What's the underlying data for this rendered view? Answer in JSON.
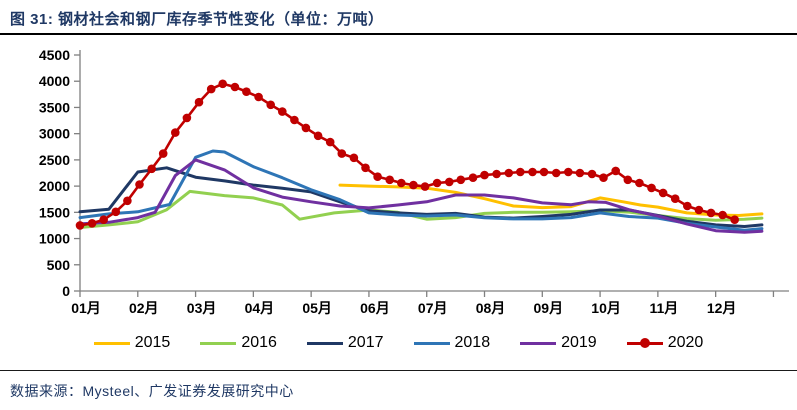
{
  "title": "图 31:  钢材社会和钢厂库存季节性变化（单位：万吨）",
  "source": "数据来源：Mysteel、广发证券发展研究中心",
  "chart_data": {
    "type": "line",
    "title": "钢材社会和钢厂库存季节性变化",
    "unit": "万吨",
    "x_axis": {
      "labels": [
        "01月",
        "02月",
        "03月",
        "04月",
        "05月",
        "06月",
        "07月",
        "08月",
        "09月",
        "10月",
        "11月",
        "12月"
      ],
      "range": [
        0,
        12.2
      ],
      "note": "x is in month units, 0 = Jan 1, 11.8 ~= end of Dec"
    },
    "y_axis": {
      "ticks": [
        0,
        500,
        1000,
        1500,
        2000,
        2500,
        3000,
        3500,
        4000,
        4500
      ],
      "range": [
        0,
        4500
      ]
    },
    "grid": false,
    "legend_position": "bottom",
    "axis_color": "#808080",
    "series": [
      {
        "name": "2015",
        "color": "#FFC000",
        "marker": "none",
        "x": [
          4.5,
          5.0,
          5.5,
          6.0,
          6.5,
          7.0,
          7.5,
          8.0,
          8.5,
          9.0,
          9.4,
          9.7,
          10.0,
          10.5,
          11.0,
          11.4,
          11.8
        ],
        "y": [
          2020,
          2000,
          1985,
          1960,
          1880,
          1760,
          1620,
          1590,
          1610,
          1775,
          1700,
          1640,
          1600,
          1490,
          1450,
          1440,
          1470
        ]
      },
      {
        "name": "2016",
        "color": "#92D050",
        "marker": "none",
        "x": [
          0,
          0.5,
          1.0,
          1.5,
          1.9,
          2.5,
          3.0,
          3.5,
          3.8,
          4.4,
          5.0,
          5.5,
          6.0,
          6.5,
          7.0,
          7.5,
          8.0,
          8.5,
          9.0,
          9.5,
          10.0,
          10.5,
          11.0,
          11.5,
          11.8
        ],
        "y": [
          1210,
          1260,
          1320,
          1550,
          1900,
          1820,
          1775,
          1640,
          1370,
          1490,
          1545,
          1500,
          1370,
          1400,
          1480,
          1500,
          1500,
          1510,
          1530,
          1505,
          1440,
          1380,
          1350,
          1370,
          1390
        ]
      },
      {
        "name": "2017",
        "color": "#1F3864",
        "marker": "none",
        "x": [
          0,
          0.5,
          1.0,
          1.5,
          2.0,
          2.5,
          3.0,
          3.5,
          4.0,
          4.5,
          5.0,
          5.5,
          6.0,
          6.5,
          7.0,
          7.5,
          8.0,
          8.5,
          9.0,
          9.5,
          10.0,
          10.5,
          11.0,
          11.5,
          11.8
        ],
        "y": [
          1510,
          1560,
          2270,
          2350,
          2170,
          2100,
          2020,
          1960,
          1890,
          1700,
          1530,
          1490,
          1460,
          1480,
          1410,
          1390,
          1420,
          1460,
          1545,
          1545,
          1440,
          1330,
          1260,
          1230,
          1260
        ]
      },
      {
        "name": "2018",
        "color": "#2E75B6",
        "marker": "none",
        "x": [
          0,
          0.5,
          1.0,
          1.55,
          2.0,
          2.3,
          2.5,
          3.0,
          3.5,
          4.0,
          4.5,
          5.0,
          5.5,
          6.0,
          6.5,
          7.0,
          7.5,
          8.0,
          8.5,
          9.0,
          9.5,
          10.0,
          10.5,
          11.0,
          11.5,
          11.8
        ],
        "y": [
          1400,
          1470,
          1510,
          1650,
          2550,
          2670,
          2650,
          2370,
          2160,
          1930,
          1740,
          1490,
          1450,
          1430,
          1450,
          1395,
          1375,
          1375,
          1400,
          1490,
          1420,
          1390,
          1290,
          1220,
          1160,
          1190
        ]
      },
      {
        "name": "2019",
        "color": "#7030A0",
        "marker": "none",
        "x": [
          0,
          0.5,
          1.0,
          1.3,
          1.65,
          2.0,
          2.5,
          3.0,
          3.5,
          4.0,
          4.5,
          5.0,
          5.5,
          6.0,
          6.5,
          7.0,
          7.5,
          8.0,
          8.5,
          8.8,
          9.1,
          9.5,
          10.0,
          10.5,
          11.0,
          11.5,
          11.8
        ],
        "y": [
          1280,
          1310,
          1400,
          1500,
          2200,
          2500,
          2310,
          1965,
          1790,
          1700,
          1620,
          1585,
          1640,
          1700,
          1830,
          1830,
          1775,
          1680,
          1645,
          1700,
          1690,
          1550,
          1430,
          1280,
          1150,
          1120,
          1140
        ]
      },
      {
        "name": "2020",
        "color": "#C00000",
        "marker": "circle",
        "x": [
          0,
          0.21,
          0.41,
          0.62,
          0.82,
          1.03,
          1.24,
          1.44,
          1.65,
          1.85,
          2.06,
          2.27,
          2.47,
          2.68,
          2.88,
          3.09,
          3.3,
          3.5,
          3.71,
          3.91,
          4.12,
          4.33,
          4.53,
          4.74,
          4.94,
          5.15,
          5.36,
          5.56,
          5.77,
          5.97,
          6.18,
          6.39,
          6.59,
          6.8,
          7.0,
          7.21,
          7.42,
          7.62,
          7.83,
          8.03,
          8.24,
          8.45,
          8.65,
          8.86,
          9.06,
          9.27,
          9.48,
          9.68,
          9.89,
          10.09,
          10.3,
          10.51,
          10.71,
          10.92,
          11.12,
          11.33
        ],
        "y": [
          1250,
          1290,
          1360,
          1510,
          1720,
          2030,
          2330,
          2620,
          3020,
          3300,
          3600,
          3850,
          3950,
          3890,
          3800,
          3700,
          3550,
          3420,
          3260,
          3110,
          2960,
          2840,
          2620,
          2540,
          2350,
          2180,
          2120,
          2060,
          2020,
          1990,
          2060,
          2080,
          2120,
          2160,
          2210,
          2230,
          2250,
          2270,
          2270,
          2270,
          2250,
          2270,
          2250,
          2230,
          2160,
          2290,
          2120,
          2060,
          1965,
          1870,
          1760,
          1620,
          1545,
          1490,
          1450,
          1360
        ]
      }
    ]
  }
}
